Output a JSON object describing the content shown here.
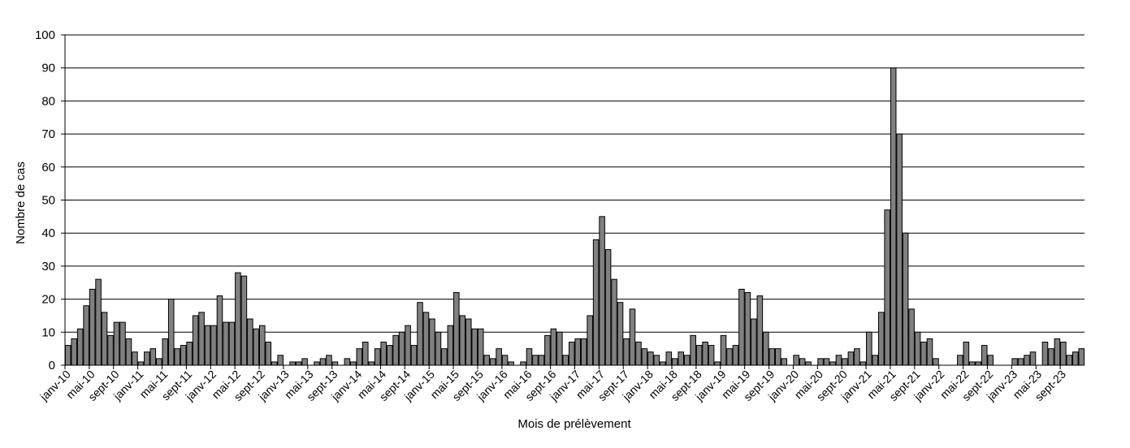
{
  "chart_data": {
    "type": "bar",
    "title": "",
    "xlabel": "Mois de prélèvement",
    "ylabel": "Nombre de cas",
    "ylim": [
      0,
      100
    ],
    "yticks": [
      0,
      10,
      20,
      30,
      40,
      50,
      60,
      70,
      80,
      90,
      100
    ],
    "grid": true,
    "bar_color": "#808080",
    "categories": [
      "janv-10",
      "févr-10",
      "mars-10",
      "avr-10",
      "mai-10",
      "juin-10",
      "juil-10",
      "août-10",
      "sept-10",
      "oct-10",
      "nov-10",
      "déc-10",
      "janv-11",
      "févr-11",
      "mars-11",
      "avr-11",
      "mai-11",
      "juin-11",
      "juil-11",
      "août-11",
      "sept-11",
      "oct-11",
      "nov-11",
      "déc-11",
      "janv-12",
      "févr-12",
      "mars-12",
      "avr-12",
      "mai-12",
      "juin-12",
      "juil-12",
      "août-12",
      "sept-12",
      "oct-12",
      "nov-12",
      "déc-12",
      "janv-13",
      "févr-13",
      "mars-13",
      "avr-13",
      "mai-13",
      "juin-13",
      "juil-13",
      "août-13",
      "sept-13",
      "oct-13",
      "nov-13",
      "déc-13",
      "janv-14",
      "févr-14",
      "mars-14",
      "avr-14",
      "mai-14",
      "juin-14",
      "juil-14",
      "août-14",
      "sept-14",
      "oct-14",
      "nov-14",
      "déc-14",
      "janv-15",
      "févr-15",
      "mars-15",
      "avr-15",
      "mai-15",
      "juin-15",
      "juil-15",
      "août-15",
      "sept-15",
      "oct-15",
      "nov-15",
      "déc-15",
      "janv-16",
      "févr-16",
      "mars-16",
      "avr-16",
      "mai-16",
      "juin-16",
      "juil-16",
      "août-16",
      "sept-16",
      "oct-16",
      "nov-16",
      "déc-16",
      "janv-17",
      "févr-17",
      "mars-17",
      "avr-17",
      "mai-17",
      "juin-17",
      "juil-17",
      "août-17",
      "sept-17",
      "oct-17",
      "nov-17",
      "déc-17",
      "janv-18",
      "févr-18",
      "mars-18",
      "avr-18",
      "mai-18",
      "juin-18",
      "juil-18",
      "août-18",
      "sept-18",
      "oct-18",
      "nov-18",
      "déc-18",
      "janv-19",
      "févr-19",
      "mars-19",
      "avr-19",
      "mai-19",
      "juin-19",
      "juil-19",
      "août-19",
      "sept-19",
      "oct-19",
      "nov-19",
      "déc-19",
      "janv-20",
      "févr-20",
      "mars-20",
      "avr-20",
      "mai-20",
      "juin-20",
      "juil-20",
      "août-20",
      "sept-20",
      "oct-20",
      "nov-20",
      "déc-20",
      "janv-21",
      "févr-21",
      "mars-21",
      "avr-21",
      "mai-21",
      "juin-21",
      "juil-21",
      "août-21",
      "sept-21",
      "oct-21",
      "nov-21",
      "déc-21",
      "janv-22",
      "févr-22",
      "mars-22",
      "avr-22",
      "mai-22",
      "juin-22",
      "juil-22",
      "août-22",
      "sept-22",
      "oct-22",
      "nov-22",
      "déc-22",
      "janv-23",
      "févr-23",
      "mars-23",
      "avr-23",
      "mai-23",
      "juin-23",
      "juil-23",
      "août-23",
      "sept-23",
      "oct-23",
      "nov-23",
      "déc-23"
    ],
    "tick_labels": [
      "janv-10",
      "mai-10",
      "sept-10",
      "janv-11",
      "mai-11",
      "sept-11",
      "janv-12",
      "mai-12",
      "sept-12",
      "janv-13",
      "mai-13",
      "sept-13",
      "janv-14",
      "mai-14",
      "sept-14",
      "janv-15",
      "mai-15",
      "sept-15",
      "janv-16",
      "mai-16",
      "sept-16",
      "janv-17",
      "mai-17",
      "sept-17",
      "janv-18",
      "mai-18",
      "sept-18",
      "janv-19",
      "mai-19",
      "sept-19",
      "janv-20",
      "mai-20",
      "sept-20",
      "janv-21",
      "mai-21",
      "sept-21",
      "janv-22",
      "mai-22",
      "sept-22",
      "janv-23",
      "mai-23",
      "sept-23"
    ],
    "values": [
      6,
      8,
      11,
      18,
      23,
      26,
      16,
      9,
      13,
      13,
      8,
      4,
      1,
      4,
      5,
      2,
      8,
      20,
      5,
      6,
      7,
      15,
      16,
      12,
      12,
      21,
      13,
      13,
      28,
      27,
      14,
      11,
      12,
      7,
      1,
      3,
      0,
      1,
      1,
      2,
      0,
      1,
      2,
      3,
      1,
      0,
      2,
      1,
      5,
      7,
      1,
      5,
      7,
      6,
      9,
      10,
      12,
      6,
      19,
      16,
      14,
      10,
      5,
      12,
      22,
      15,
      14,
      11,
      11,
      3,
      2,
      5,
      3,
      1,
      0,
      1,
      5,
      3,
      3,
      9,
      11,
      10,
      3,
      7,
      8,
      8,
      15,
      38,
      45,
      35,
      26,
      19,
      8,
      17,
      7,
      5,
      4,
      3,
      1,
      4,
      2,
      4,
      3,
      9,
      6,
      7,
      6,
      1,
      9,
      5,
      6,
      23,
      22,
      14,
      21,
      10,
      5,
      5,
      2,
      0,
      3,
      2,
      1,
      0,
      2,
      2,
      1,
      3,
      2,
      4,
      5,
      1,
      10,
      3,
      16,
      47,
      90,
      70,
      40,
      17,
      10,
      7,
      8,
      2,
      0,
      0,
      0,
      3,
      7,
      1,
      1,
      6,
      3,
      0,
      0,
      0,
      2,
      2,
      3,
      4,
      0,
      7,
      5,
      8,
      7,
      3,
      4,
      5
    ],
    "values_extra_note": ""
  }
}
